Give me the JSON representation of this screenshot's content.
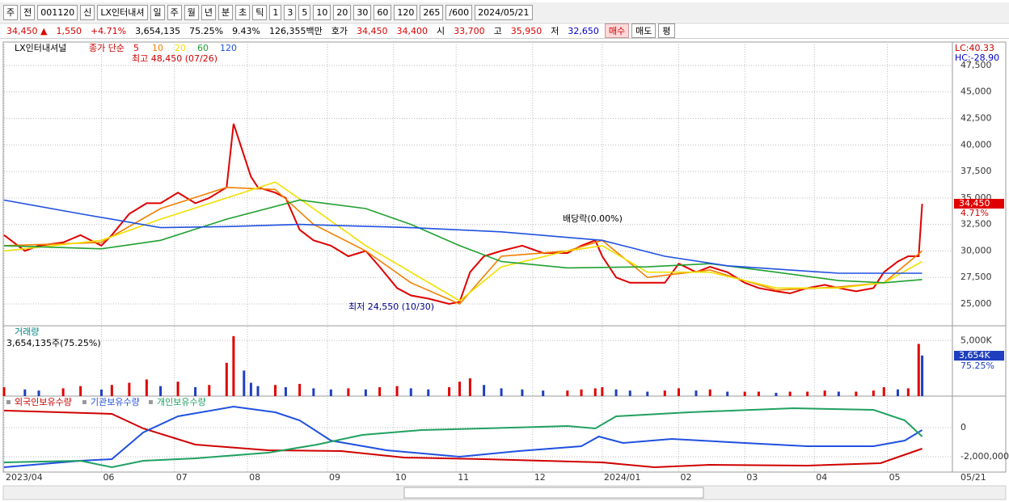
{
  "toolbar": {
    "row1": [
      "주",
      "전",
      "001120",
      "신",
      "LX인터내셔",
      "일",
      "주",
      "월",
      "년",
      "분",
      "초",
      "틱",
      "1",
      "3",
      "5",
      "10",
      "20",
      "30",
      "60",
      "120",
      "265",
      "/600",
      "2024/05/21"
    ],
    "row2": [
      "34,450 ▲",
      "1,550",
      "+4.71%",
      "3,654,135",
      "75.25%",
      "9.43%",
      "126,355백만",
      "호가",
      "34,450",
      "34,400",
      "시",
      "33,700",
      "고",
      "35,950",
      "저",
      "32,650",
      "매수",
      "매도",
      "평"
    ]
  },
  "chart_data": [
    {
      "type": "line",
      "title": "LX인터내셔널",
      "subtitle": "종가 단순",
      "xlim": [
        0,
        272
      ],
      "xticks": [
        {
          "value": 0,
          "label": "2023/04"
        },
        {
          "value": 28,
          "label": "06"
        },
        {
          "value": 49,
          "label": "07"
        },
        {
          "value": 70,
          "label": "08"
        },
        {
          "value": 93,
          "label": "09"
        },
        {
          "value": 112,
          "label": "10"
        },
        {
          "value": 130,
          "label": "11"
        },
        {
          "value": 152,
          "label": "12"
        },
        {
          "value": 172,
          "label": "2024/01"
        },
        {
          "value": 194,
          "label": "02"
        },
        {
          "value": 213,
          "label": "03"
        },
        {
          "value": 233,
          "label": "04"
        },
        {
          "value": 254,
          "label": "05"
        }
      ],
      "x_end_label": "05/21",
      "ylim": [
        22940,
        49480
      ],
      "yticks": [
        {
          "value": 25000,
          "label": "25,000"
        },
        {
          "value": 27500,
          "label": "27,500"
        },
        {
          "value": 30000,
          "label": "30,000"
        },
        {
          "value": 32500,
          "label": "32,500"
        },
        {
          "value": 35000,
          "label": "35,000"
        },
        {
          "value": 37500,
          "label": "37,500"
        },
        {
          "value": 40000,
          "label": "40,000"
        },
        {
          "value": 42500,
          "label": "42,500"
        },
        {
          "value": 45000,
          "label": "45,000"
        },
        {
          "value": 47500,
          "label": "47,500"
        }
      ],
      "grid": true,
      "series": [
        {
          "name": "5",
          "color": "#e00000",
          "x": [
            0,
            6,
            10,
            17,
            22,
            28,
            31,
            36,
            41,
            45,
            50,
            55,
            59,
            64,
            66,
            69,
            71,
            73,
            78,
            81,
            85,
            89,
            94,
            99,
            104,
            108,
            113,
            117,
            122,
            128,
            131,
            134,
            138,
            143,
            149,
            155,
            162,
            166,
            170,
            172,
            176,
            180,
            185,
            190,
            194,
            199,
            203,
            208,
            213,
            217,
            222,
            226,
            231,
            236,
            240,
            245,
            250,
            253,
            257,
            260,
            263,
            264
          ],
          "values": [
            31500,
            30000,
            30500,
            30800,
            31500,
            30500,
            31500,
            33500,
            34500,
            34500,
            35500,
            34500,
            35000,
            36000,
            42000,
            39000,
            37000,
            36000,
            35500,
            35000,
            32000,
            31000,
            30500,
            29500,
            30000,
            28500,
            26500,
            25800,
            25500,
            25000,
            25200,
            28000,
            29500,
            30000,
            30500,
            29800,
            29800,
            30500,
            31000,
            29500,
            27500,
            27000,
            27000,
            27000,
            28800,
            28000,
            28500,
            28000,
            27000,
            26500,
            26200,
            26000,
            26500,
            26800,
            26500,
            26200,
            26500,
            28000,
            29000,
            29500,
            29500,
            34450
          ]
        },
        {
          "name": "10",
          "color": "#f08000",
          "x": [
            0,
            28,
            45,
            64,
            78,
            89,
            104,
            117,
            131,
            143,
            162,
            172,
            185,
            203,
            222,
            240,
            253,
            264
          ],
          "values": [
            30500,
            30800,
            34000,
            36000,
            35800,
            32500,
            30000,
            27000,
            25000,
            29500,
            30000,
            31000,
            27500,
            28200,
            26300,
            26600,
            27000,
            30000
          ]
        },
        {
          "name": "20",
          "color": "#f0e000",
          "x": [
            0,
            28,
            45,
            64,
            78,
            89,
            104,
            117,
            131,
            143,
            162,
            172,
            185,
            203,
            222,
            240,
            253,
            264
          ],
          "values": [
            30000,
            31000,
            33000,
            35000,
            36500,
            34000,
            30500,
            28000,
            25300,
            28500,
            30000,
            30500,
            28000,
            28000,
            26500,
            26500,
            27000,
            29000
          ]
        },
        {
          "name": "60",
          "color": "#20a030",
          "x": [
            0,
            28,
            45,
            64,
            85,
            104,
            117,
            131,
            143,
            162,
            185,
            203,
            222,
            240,
            253,
            264
          ],
          "values": [
            30500,
            30200,
            31000,
            33000,
            34800,
            34000,
            32500,
            30500,
            29000,
            28400,
            28500,
            28800,
            28000,
            27200,
            27000,
            27300
          ]
        },
        {
          "name": "120",
          "color": "#2050e0",
          "x": [
            0,
            22,
            45,
            64,
            85,
            117,
            143,
            172,
            190,
            208,
            240,
            264
          ],
          "values": [
            34800,
            33500,
            32200,
            32300,
            32500,
            32200,
            31800,
            31000,
            29500,
            28600,
            27900,
            27900
          ]
        }
      ],
      "annotations": [
        "최고 48,450 (07/26)",
        "배당락(0.00%)",
        "최저 24,550 (10/30)",
        "LC:40.33",
        "HC:-28.90",
        "34,450",
        "4.71%"
      ]
    },
    {
      "type": "bar",
      "title": "거래량",
      "subtitle": "3,654,135주(75.25%)",
      "xlim": [
        0,
        272
      ],
      "x": [
        0,
        6,
        10,
        17,
        22,
        28,
        31,
        36,
        41,
        45,
        50,
        55,
        59,
        64,
        66,
        69,
        71,
        73,
        78,
        81,
        85,
        89,
        94,
        99,
        104,
        108,
        113,
        117,
        122,
        128,
        131,
        134,
        138,
        143,
        149,
        155,
        162,
        166,
        170,
        172,
        176,
        180,
        185,
        190,
        194,
        199,
        203,
        208,
        213,
        217,
        222,
        226,
        231,
        236,
        240,
        245,
        250,
        253,
        257,
        260,
        263,
        264
      ],
      "values": [
        800000,
        600000,
        500000,
        700000,
        900000,
        600000,
        1000000,
        1200000,
        1500000,
        900000,
        1300000,
        800000,
        1000000,
        3000000,
        5400000,
        2300000,
        1200000,
        900000,
        1000000,
        800000,
        1100000,
        700000,
        600000,
        700000,
        600000,
        800000,
        900000,
        700000,
        600000,
        800000,
        1300000,
        1600000,
        1000000,
        700000,
        600000,
        500000,
        500000,
        600000,
        700000,
        800000,
        600000,
        500000,
        400000,
        500000,
        700000,
        500000,
        600000,
        400000,
        400000,
        400000,
        300000,
        400000,
        400000,
        500000,
        400000,
        400000,
        500000,
        800000,
        600000,
        700000,
        4700000,
        3654135
      ],
      "ylim": [
        0,
        6260000
      ],
      "yticks": [
        {
          "value": 5000000,
          "label": "5,000K"
        }
      ],
      "annotations": [
        "3,654K",
        "75.25%"
      ]
    },
    {
      "type": "line",
      "xlim": [
        0,
        272
      ],
      "ylim": [
        -3000000,
        2055000
      ],
      "yticks": [
        0,
        {
          "value": -2000000,
          "label": "-2,000,000"
        }
      ],
      "series": [
        {
          "name": "외국인보유수량",
          "color": "#d00000",
          "x": [
            0,
            31,
            40,
            55,
            76,
            97,
            115,
            138,
            172,
            187,
            203,
            231,
            252,
            264
          ],
          "values": [
            1170000,
            944000,
            -56000,
            -1167000,
            -1556000,
            -1611000,
            -2056000,
            -2167000,
            -2389000,
            -2722000,
            -2556000,
            -2611000,
            -2444000,
            -1444000
          ]
        },
        {
          "name": "기관보유수량",
          "color": "#2050e0",
          "x": [
            0,
            22,
            31,
            40,
            50,
            66,
            78,
            85,
            94,
            110,
            131,
            148,
            166,
            171,
            178,
            192,
            213,
            231,
            250,
            259,
            264
          ],
          "values": [
            -2722000,
            -2278000,
            -2167000,
            -333000,
            778000,
            1444000,
            1056000,
            500000,
            -889000,
            -1556000,
            -2000000,
            -1611000,
            -1278000,
            -611000,
            -1056000,
            -778000,
            -1056000,
            -1278000,
            -1278000,
            -889000,
            -167000
          ]
        },
        {
          "name": "개인보유수량",
          "color": "#20a060",
          "x": [
            0,
            22,
            31,
            40,
            55,
            76,
            90,
            103,
            120,
            138,
            162,
            170,
            176,
            197,
            227,
            250,
            259,
            264
          ],
          "values": [
            -2389000,
            -2278000,
            -2722000,
            -2278000,
            -2111000,
            -1722000,
            -1167000,
            -500000,
            -167000,
            -56000,
            111000,
            -56000,
            778000,
            1056000,
            1333000,
            1222000,
            500000,
            -611000
          ]
        }
      ]
    }
  ]
}
